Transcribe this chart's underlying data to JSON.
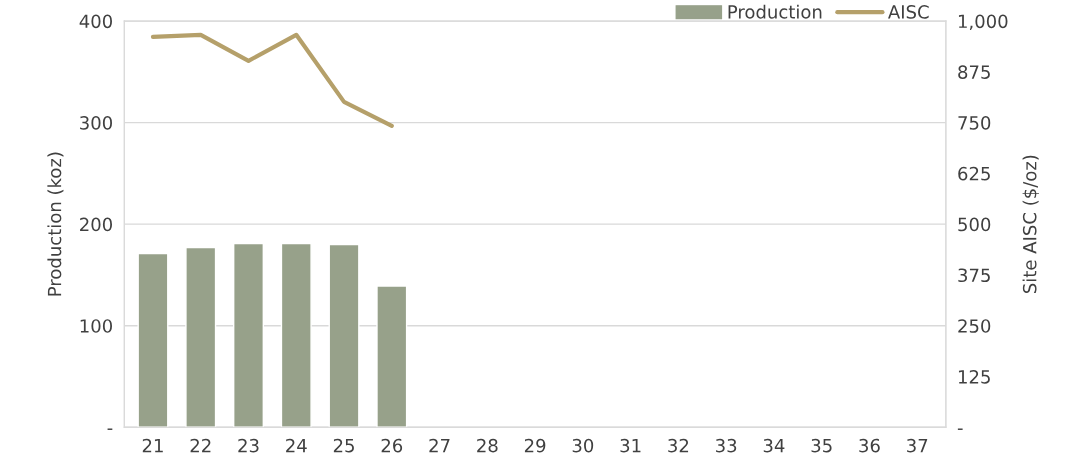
{
  "chart_data": {
    "type": "bar",
    "categories": [
      "21",
      "22",
      "23",
      "24",
      "25",
      "26",
      "27",
      "28",
      "29",
      "30",
      "31",
      "32",
      "33",
      "34",
      "35",
      "36",
      "37"
    ],
    "series": [
      {
        "name": "Production",
        "type": "bar",
        "color": "#97a18a",
        "values": [
          171,
          177,
          181,
          181,
          180,
          139,
          null,
          null,
          null,
          null,
          null,
          null,
          null,
          null,
          null,
          null,
          null
        ]
      },
      {
        "name": "AISC",
        "type": "line",
        "axis": "y2",
        "color": "#b5a06a",
        "values": [
          961,
          966,
          902,
          966,
          801,
          742,
          null,
          null,
          null,
          null,
          null,
          null,
          null,
          null,
          null,
          null,
          null
        ]
      }
    ],
    "ylabel": "Production (koz)",
    "y2label": "Site AISC ($/oz)",
    "ylim": [
      0,
      400
    ],
    "yticks": [
      {
        "value": 0,
        "label": "-"
      },
      100,
      200,
      300,
      400
    ],
    "y2lim": [
      0,
      1000
    ],
    "y2ticks": [
      {
        "value": 0,
        "label": "-"
      },
      125,
      250,
      375,
      500,
      625,
      750,
      875,
      {
        "value": 1000,
        "label": "1,000"
      }
    ],
    "grid": "y",
    "legend": "top right",
    "marker": "none",
    "line_style": "solid"
  }
}
